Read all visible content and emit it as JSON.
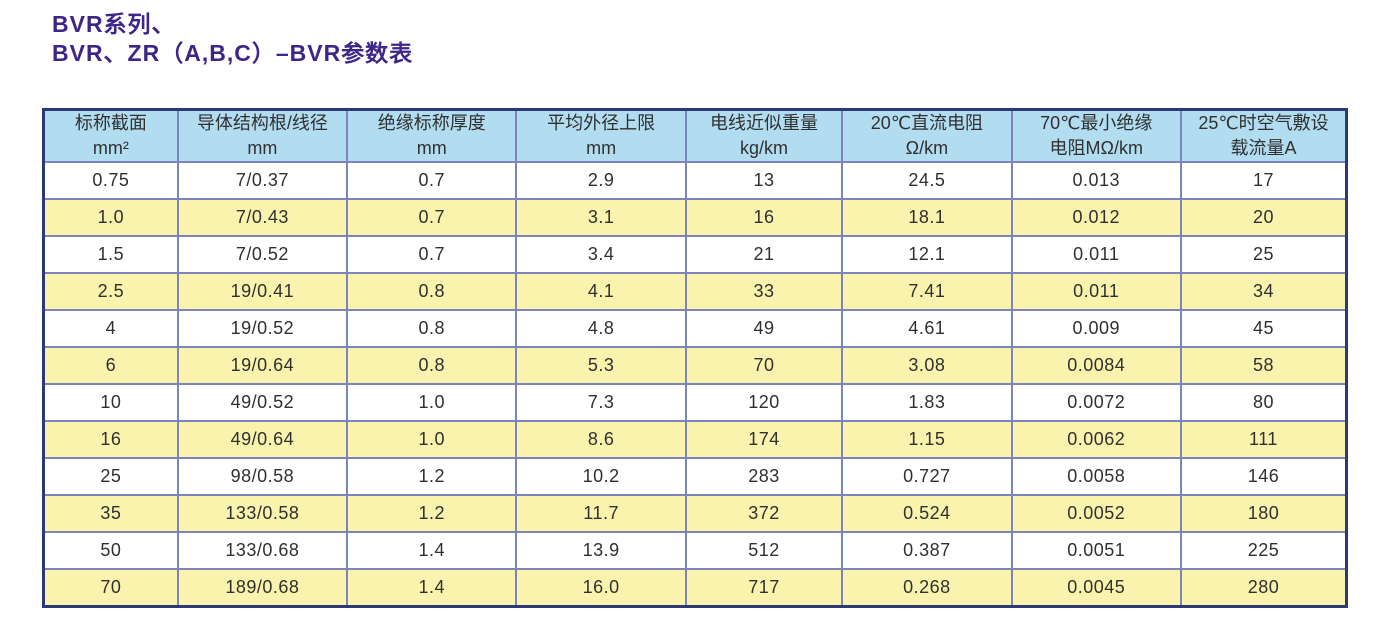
{
  "page": {
    "title_line1": "BVR系列、",
    "title_line2": "BVR、ZR（A,B,C）–BVR参数表"
  },
  "colors": {
    "title": "#3e2588",
    "header_bg": "#b2ddf1",
    "row_bg": "#ffffff",
    "row_alt_bg": "#faf3ad",
    "inner_border": "#7b84bb",
    "outer_border": "#2c3a74",
    "text": "#303030"
  },
  "table": {
    "columns": [
      {
        "line1": "标称截面",
        "line2": "mm²"
      },
      {
        "line1": "导体结构根/线径",
        "line2": "mm"
      },
      {
        "line1": "绝缘标称厚度",
        "line2": "mm"
      },
      {
        "line1": "平均外径上限",
        "line2": "mm"
      },
      {
        "line1": "电线近似重量",
        "line2": "kg/km"
      },
      {
        "line1": "20℃直流电阻",
        "line2": "Ω/km"
      },
      {
        "line1": "70℃最小绝缘",
        "line2": "电阻MΩ/km"
      },
      {
        "line1": "25℃时空气敷设",
        "line2": "载流量A"
      }
    ],
    "rows": [
      [
        "0.75",
        "7/0.37",
        "0.7",
        "2.9",
        "13",
        "24.5",
        "0.013",
        "17"
      ],
      [
        "1.0",
        "7/0.43",
        "0.7",
        "3.1",
        "16",
        "18.1",
        "0.012",
        "20"
      ],
      [
        "1.5",
        "7/0.52",
        "0.7",
        "3.4",
        "21",
        "12.1",
        "0.011",
        "25"
      ],
      [
        "2.5",
        "19/0.41",
        "0.8",
        "4.1",
        "33",
        "7.41",
        "0.011",
        "34"
      ],
      [
        "4",
        "19/0.52",
        "0.8",
        "4.8",
        "49",
        "4.61",
        "0.009",
        "45"
      ],
      [
        "6",
        "19/0.64",
        "0.8",
        "5.3",
        "70",
        "3.08",
        "0.0084",
        "58"
      ],
      [
        "10",
        "49/0.52",
        "1.0",
        "7.3",
        "120",
        "1.83",
        "0.0072",
        "80"
      ],
      [
        "16",
        "49/0.64",
        "1.0",
        "8.6",
        "174",
        "1.15",
        "0.0062",
        "111"
      ],
      [
        "25",
        "98/0.58",
        "1.2",
        "10.2",
        "283",
        "0.727",
        "0.0058",
        "146"
      ],
      [
        "35",
        "133/0.58",
        "1.2",
        "11.7",
        "372",
        "0.524",
        "0.0052",
        "180"
      ],
      [
        "50",
        "133/0.68",
        "1.4",
        "13.9",
        "512",
        "0.387",
        "0.0051",
        "225"
      ],
      [
        "70",
        "189/0.68",
        "1.4",
        "16.0",
        "717",
        "0.268",
        "0.0045",
        "280"
      ]
    ]
  }
}
